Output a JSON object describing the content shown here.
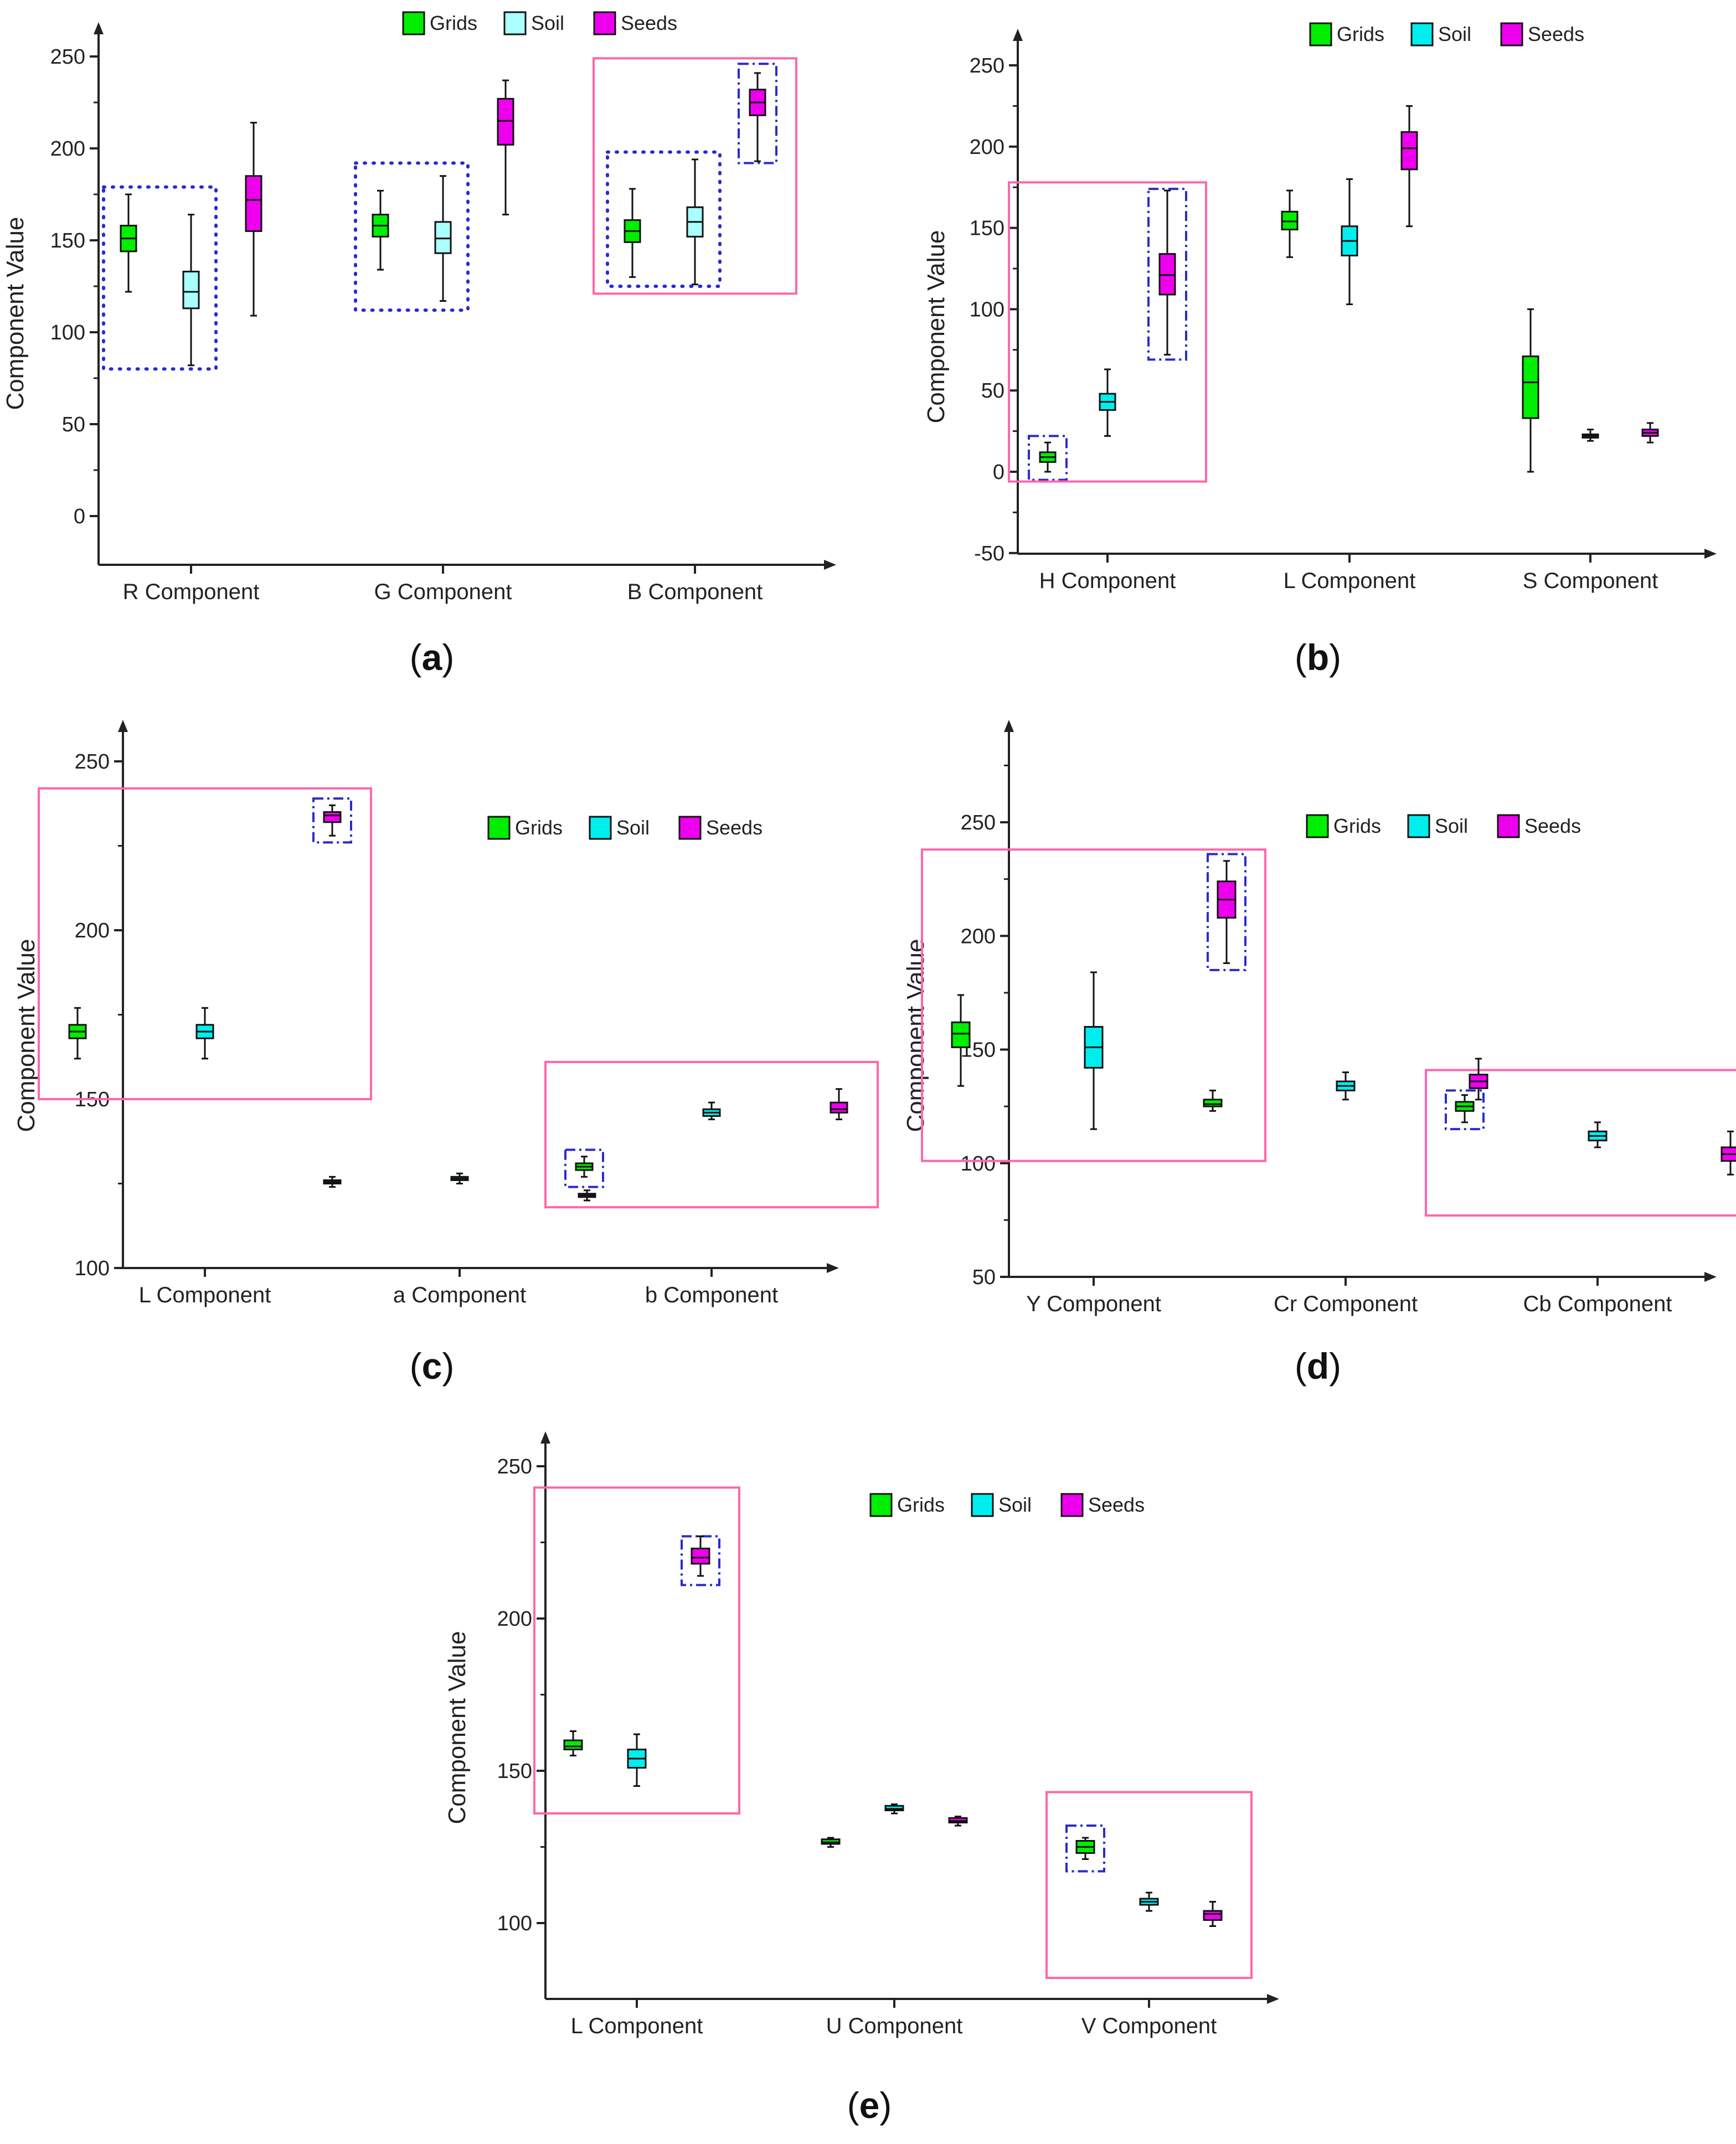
{
  "legend": [
    {
      "name": "Grids",
      "color": "#00ee00"
    },
    {
      "name": "Soil",
      "color": "#00eeee"
    },
    {
      "name": "Seeds",
      "color": "#ee00ee"
    }
  ],
  "colors": {
    "Grids": "#00ee00",
    "SoilA": "#aaffff",
    "Soil": "#00eeee",
    "Seeds": "#ee00ee",
    "axis": "#222222",
    "pinkBox": "#ff66aa",
    "blueBox": "#2a2ad0"
  },
  "chart_data": [
    {
      "id": "a",
      "caption": "a",
      "type": "boxplot",
      "ylabel": "Component Value",
      "ylim": [
        -25,
        275
      ],
      "yticks": [
        0,
        50,
        100,
        150,
        200,
        250
      ],
      "legend_position": "top",
      "categories": [
        "R Component",
        "G Component",
        "B Component"
      ],
      "series": [
        {
          "name": "Grids",
          "boxes": [
            {
              "min": 122,
              "q1": 144,
              "median": 151,
              "q3": 158,
              "max": 175
            },
            {
              "min": 134,
              "q1": 152,
              "median": 158,
              "q3": 164,
              "max": 177
            },
            {
              "min": 130,
              "q1": 149,
              "median": 155,
              "q3": 161,
              "max": 178
            }
          ]
        },
        {
          "name": "Soil",
          "boxes": [
            {
              "min": 82,
              "q1": 113,
              "median": 122,
              "q3": 133,
              "max": 164
            },
            {
              "min": 117,
              "q1": 143,
              "median": 151,
              "q3": 160,
              "max": 185
            },
            {
              "min": 126,
              "q1": 152,
              "median": 160,
              "q3": 168,
              "max": 194
            }
          ]
        },
        {
          "name": "Seeds",
          "boxes": [
            {
              "min": 109,
              "q1": 155,
              "median": 172,
              "q3": 185,
              "max": 214
            },
            {
              "min": 164,
              "q1": 202,
              "median": 215,
              "q3": 227,
              "max": 237
            },
            {
              "min": 193,
              "q1": 218,
              "median": 225,
              "q3": 232,
              "max": 241
            }
          ]
        }
      ],
      "highlights": [
        {
          "style": "dotted",
          "cats": [
            0,
            0
          ],
          "series": [
            0,
            1
          ],
          "y": [
            80,
            179
          ]
        },
        {
          "style": "dotted",
          "cats": [
            1,
            1
          ],
          "series": [
            0,
            1
          ],
          "y": [
            112,
            192
          ]
        },
        {
          "style": "dotted",
          "cats": [
            2,
            2
          ],
          "series": [
            0,
            1
          ],
          "y": [
            125,
            198
          ]
        },
        {
          "style": "dashdot",
          "cats": [
            2,
            2
          ],
          "series": [
            2,
            2
          ],
          "y": [
            192,
            246
          ]
        },
        {
          "style": "pink",
          "cats": [
            2,
            2
          ],
          "series": [
            0,
            2
          ],
          "y": [
            121,
            249
          ]
        }
      ]
    },
    {
      "id": "b",
      "caption": "b",
      "type": "boxplot",
      "ylabel": "Component Value",
      "ylim": [
        -50,
        275
      ],
      "yticks": [
        -50,
        0,
        50,
        100,
        150,
        200,
        250
      ],
      "legend_position": "top",
      "categories": [
        "H Component",
        "L Component",
        "S Component"
      ],
      "series": [
        {
          "name": "Grids",
          "boxes": [
            {
              "min": 0,
              "q1": 6,
              "median": 9,
              "q3": 12,
              "max": 18
            },
            {
              "min": 132,
              "q1": 149,
              "median": 154,
              "q3": 160,
              "max": 173
            },
            {
              "min": 0,
              "q1": 33,
              "median": 55,
              "q3": 71,
              "max": 100
            }
          ]
        },
        {
          "name": "Soil",
          "boxes": [
            {
              "min": 22,
              "q1": 38,
              "median": 43,
              "q3": 48,
              "max": 63
            },
            {
              "min": 103,
              "q1": 133,
              "median": 142,
              "q3": 151,
              "max": 180
            },
            {
              "min": 19,
              "q1": 21,
              "median": 22,
              "q3": 23,
              "max": 26
            }
          ]
        },
        {
          "name": "Seeds",
          "boxes": [
            {
              "min": 72,
              "q1": 109,
              "median": 121,
              "q3": 134,
              "max": 173
            },
            {
              "min": 151,
              "q1": 186,
              "median": 199,
              "q3": 209,
              "max": 225
            },
            {
              "min": 18,
              "q1": 22,
              "median": 24,
              "q3": 26,
              "max": 30
            }
          ]
        }
      ],
      "highlights": [
        {
          "style": "dashdot",
          "cats": [
            0,
            0
          ],
          "series": [
            0,
            0
          ],
          "y": [
            -5,
            22
          ]
        },
        {
          "style": "dashdot",
          "cats": [
            0,
            0
          ],
          "series": [
            2,
            2
          ],
          "y": [
            69,
            174
          ]
        },
        {
          "style": "pink",
          "cats": [
            0,
            0
          ],
          "series": [
            0,
            2
          ],
          "y": [
            -6,
            178
          ]
        }
      ]
    },
    {
      "id": "c",
      "caption": "c",
      "type": "boxplot",
      "ylabel": "Component Value",
      "ylim": [
        100,
        258
      ],
      "yticks": [
        100,
        150,
        200,
        250
      ],
      "legend_position": "upper-right",
      "categories": [
        "L Component",
        "a Component",
        "b Component"
      ],
      "series": [
        {
          "name": "Grids",
          "boxes": [
            {
              "min": 162,
              "q1": 168,
              "median": 170,
              "q3": 172,
              "max": 177
            },
            {
              "min": 124,
              "q1": 125,
              "median": 125.5,
              "q3": 126,
              "max": 127
            },
            {
              "min": 127,
              "q1": 129,
              "median": 130,
              "q3": 131,
              "max": 133
            }
          ]
        },
        {
          "name": "Soil",
          "boxes": [
            {
              "min": 162,
              "q1": 168,
              "median": 170,
              "q3": 172,
              "max": 177
            },
            {
              "min": 125,
              "q1": 126,
              "median": 126.5,
              "q3": 127,
              "max": 128
            },
            {
              "min": 144,
              "q1": 145,
              "median": 146,
              "q3": 147,
              "max": 149
            }
          ]
        },
        {
          "name": "Seeds",
          "boxes": [
            {
              "min": 228,
              "q1": 232,
              "median": 234,
              "q3": 235,
              "max": 237
            },
            {
              "min": 120,
              "q1": 121,
              "median": 121.5,
              "q3": 122,
              "max": 123
            },
            {
              "min": 144,
              "q1": 146,
              "median": 147,
              "q3": 149,
              "max": 153
            }
          ]
        }
      ],
      "highlights": [
        {
          "style": "dashdot",
          "cats": [
            0,
            0
          ],
          "series": [
            2,
            2
          ],
          "y": [
            226,
            239
          ]
        },
        {
          "style": "pink",
          "cats": [
            0,
            0
          ],
          "series": [
            0,
            2
          ],
          "y": [
            150,
            242
          ]
        },
        {
          "style": "dashdot",
          "cats": [
            2,
            2
          ],
          "series": [
            0,
            0
          ],
          "y": [
            124,
            135
          ]
        },
        {
          "style": "pink",
          "cats": [
            2,
            2
          ],
          "series": [
            0,
            2
          ],
          "y": [
            118,
            161
          ]
        }
      ]
    },
    {
      "id": "d",
      "caption": "d",
      "type": "boxplot",
      "ylabel": "Component Value",
      "ylim": [
        50,
        285
      ],
      "yticks": [
        50,
        100,
        150,
        200,
        250
      ],
      "legend_position": "upper-right",
      "categories": [
        "Y Component",
        "Cr Component",
        "Cb Component"
      ],
      "series": [
        {
          "name": "Grids",
          "boxes": [
            {
              "min": 134,
              "q1": 151,
              "median": 157,
              "q3": 162,
              "max": 174
            },
            {
              "min": 123,
              "q1": 125,
              "median": 126,
              "q3": 128,
              "max": 132
            },
            {
              "min": 118,
              "q1": 123,
              "median": 125,
              "q3": 127,
              "max": 130
            }
          ]
        },
        {
          "name": "Soil",
          "boxes": [
            {
              "min": 115,
              "q1": 142,
              "median": 151,
              "q3": 160,
              "max": 184
            },
            {
              "min": 128,
              "q1": 132,
              "median": 134,
              "q3": 136,
              "max": 140
            },
            {
              "min": 107,
              "q1": 110,
              "median": 112,
              "q3": 114,
              "max": 118
            }
          ]
        },
        {
          "name": "Seeds",
          "boxes": [
            {
              "min": 188,
              "q1": 208,
              "median": 216,
              "q3": 224,
              "max": 233
            },
            {
              "min": 128,
              "q1": 133,
              "median": 136,
              "q3": 139,
              "max": 146
            },
            {
              "min": 95,
              "q1": 101,
              "median": 104,
              "q3": 107,
              "max": 114
            }
          ]
        }
      ],
      "highlights": [
        {
          "style": "dashdot",
          "cats": [
            0,
            0
          ],
          "series": [
            2,
            2
          ],
          "y": [
            185,
            236
          ]
        },
        {
          "style": "pink",
          "cats": [
            0,
            0
          ],
          "series": [
            0,
            2
          ],
          "y": [
            101,
            238
          ]
        },
        {
          "style": "dashdot",
          "cats": [
            2,
            2
          ],
          "series": [
            0,
            0
          ],
          "y": [
            115,
            132
          ]
        },
        {
          "style": "pink",
          "cats": [
            2,
            2
          ],
          "series": [
            0,
            2
          ],
          "y": [
            77,
            141
          ]
        }
      ]
    },
    {
      "id": "e",
      "caption": "e",
      "type": "boxplot",
      "ylabel": "Component Value",
      "ylim": [
        75,
        265
      ],
      "yticks": [
        100,
        150,
        200,
        250
      ],
      "legend_position": "upper-right",
      "categories": [
        "L Component",
        "U Component",
        "V Component"
      ],
      "series": [
        {
          "name": "Grids",
          "boxes": [
            {
              "min": 155,
              "q1": 157,
              "median": 158,
              "q3": 160,
              "max": 163
            },
            {
              "min": 125,
              "q1": 126,
              "median": 126.5,
              "q3": 127.5,
              "max": 128
            },
            {
              "min": 121,
              "q1": 123,
              "median": 125,
              "q3": 127,
              "max": 128
            }
          ]
        },
        {
          "name": "Soil",
          "boxes": [
            {
              "min": 145,
              "q1": 151,
              "median": 154,
              "q3": 157,
              "max": 162
            },
            {
              "min": 136,
              "q1": 137,
              "median": 137.5,
              "q3": 138.5,
              "max": 139
            },
            {
              "min": 104,
              "q1": 106,
              "median": 107,
              "q3": 108,
              "max": 110
            }
          ]
        },
        {
          "name": "Seeds",
          "boxes": [
            {
              "min": 214,
              "q1": 218,
              "median": 220,
              "q3": 223,
              "max": 227
            },
            {
              "min": 132,
              "q1": 133,
              "median": 133.5,
              "q3": 134.5,
              "max": 135
            },
            {
              "min": 99,
              "q1": 101,
              "median": 103,
              "q3": 104,
              "max": 107
            }
          ]
        }
      ],
      "highlights": [
        {
          "style": "dashdot",
          "cats": [
            0,
            0
          ],
          "series": [
            2,
            2
          ],
          "y": [
            211,
            227
          ]
        },
        {
          "style": "pink",
          "cats": [
            0,
            0
          ],
          "series": [
            0,
            2
          ],
          "y": [
            136,
            243
          ]
        },
        {
          "style": "dashdot",
          "cats": [
            2,
            2
          ],
          "series": [
            0,
            0
          ],
          "y": [
            117,
            132
          ]
        },
        {
          "style": "pink",
          "cats": [
            2,
            2
          ],
          "series": [
            0,
            2
          ],
          "y": [
            82,
            143
          ]
        }
      ]
    }
  ]
}
